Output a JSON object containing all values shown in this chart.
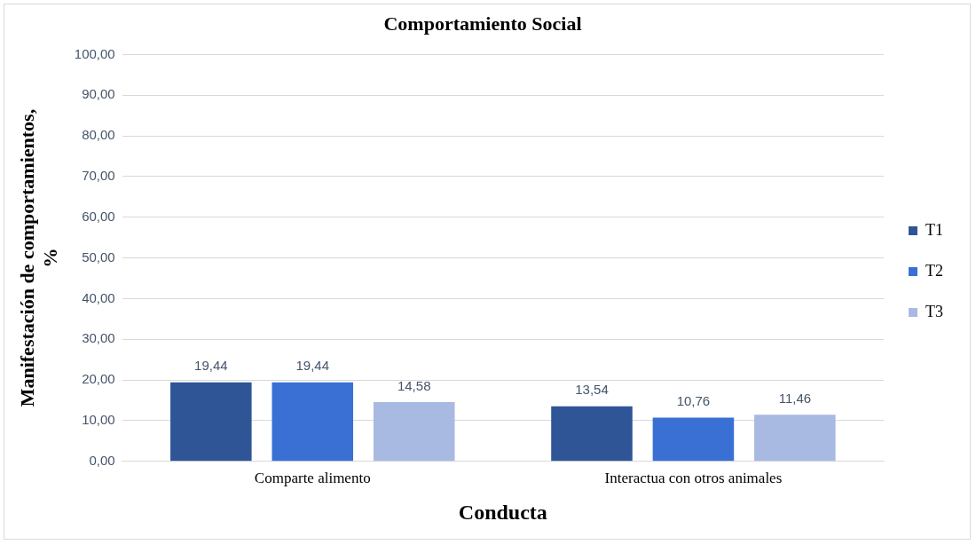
{
  "chart_data": {
    "type": "bar",
    "title": "Comportamiento Social",
    "xlabel": "Conducta",
    "ylabel": "Manifestación de comportamientos, %",
    "categories": [
      "Comparte alimento",
      "Interactua con otros animales"
    ],
    "series": [
      {
        "name": "T1",
        "color": "#2f5597",
        "values": [
          19.44,
          13.54
        ],
        "value_labels": [
          "19,44",
          "13,54"
        ]
      },
      {
        "name": "T2",
        "color": "#3a70d4",
        "values": [
          19.44,
          10.76
        ],
        "value_labels": [
          "19,44",
          "10,76"
        ]
      },
      {
        "name": "T3",
        "color": "#a8b9e2",
        "values": [
          14.58,
          11.46
        ],
        "value_labels": [
          "14,58",
          "11,46"
        ]
      }
    ],
    "ylim": [
      0,
      100
    ],
    "yticks": [
      {
        "value": 0,
        "label": "0,00"
      },
      {
        "value": 10,
        "label": "10,00"
      },
      {
        "value": 20,
        "label": "20,00"
      },
      {
        "value": 30,
        "label": "30,00"
      },
      {
        "value": 40,
        "label": "40,00"
      },
      {
        "value": 50,
        "label": "50,00"
      },
      {
        "value": 60,
        "label": "60,00"
      },
      {
        "value": 70,
        "label": "70,00"
      },
      {
        "value": 80,
        "label": "80,00"
      },
      {
        "value": 90,
        "label": "90,00"
      },
      {
        "value": 100,
        "label": "100,00"
      }
    ],
    "grid": "y",
    "legend": "right"
  }
}
